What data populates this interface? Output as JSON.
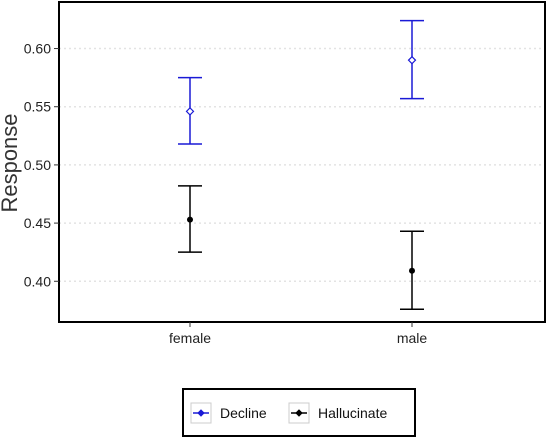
{
  "chart_data": {
    "type": "scatter",
    "title": "",
    "xlabel": "",
    "ylabel": "Response",
    "categories": [
      "female",
      "male"
    ],
    "ylim": [
      0.365,
      0.64
    ],
    "yticks": [
      0.4,
      0.45,
      0.5,
      0.55,
      0.6
    ],
    "ytick_labels": [
      "0.40",
      "0.45",
      "0.50",
      "0.55",
      "0.60"
    ],
    "grid": "horizontal dotted",
    "legend_position": "bottom",
    "series": [
      {
        "name": "Decline",
        "color": "#1a1ad6",
        "marker": "open-diamond",
        "values": [
          0.546,
          0.59
        ],
        "lower": [
          0.518,
          0.557
        ],
        "upper": [
          0.575,
          0.624
        ]
      },
      {
        "name": "Hallucinate",
        "color": "#000000",
        "marker": "filled-circle",
        "values": [
          0.453,
          0.409
        ],
        "lower": [
          0.425,
          0.376
        ],
        "upper": [
          0.482,
          0.443
        ]
      }
    ]
  }
}
